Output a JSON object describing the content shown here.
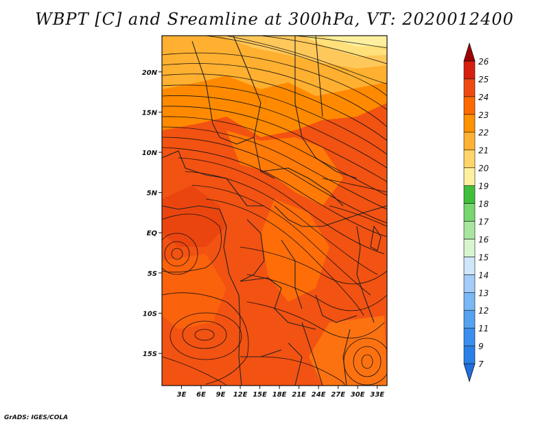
{
  "title": "WBPT [C] and Sreamline at 300hPa, VT: 2020012400",
  "credit": "GrADS: IGES/COLA",
  "map": {
    "lat_labels": [
      "20N",
      "15N",
      "10N",
      "5N",
      "EQ",
      "5S",
      "10S",
      "15S"
    ],
    "lon_labels": [
      "3E",
      "6E",
      "9E",
      "12E",
      "15E",
      "18E",
      "21E",
      "24E",
      "27E",
      "30E",
      "33E"
    ],
    "lat_range": [
      -19,
      24.5
    ],
    "lon_range": [
      0,
      34.5
    ]
  },
  "colorbar": {
    "levels": [
      "7",
      "9",
      "11",
      "12",
      "13",
      "14",
      "15",
      "16",
      "17",
      "18",
      "19",
      "20",
      "21",
      "22",
      "23",
      "24",
      "25",
      "26"
    ],
    "colors": [
      "#1f6fe0",
      "#2a7fe8",
      "#3a8ff0",
      "#56a2f2",
      "#7ab7f5",
      "#a3ccf8",
      "#cfe6fb",
      "#d8f5d0",
      "#a8e6a0",
      "#78d670",
      "#3fbf3a",
      "#fff0a0",
      "#ffd56b",
      "#ffb233",
      "#ff9200",
      "#ff6a00",
      "#f04a10",
      "#d8200e",
      "#a00000"
    ]
  },
  "colors": {
    "frame": "#111111",
    "streamline": "#111111",
    "border": "#222222"
  }
}
